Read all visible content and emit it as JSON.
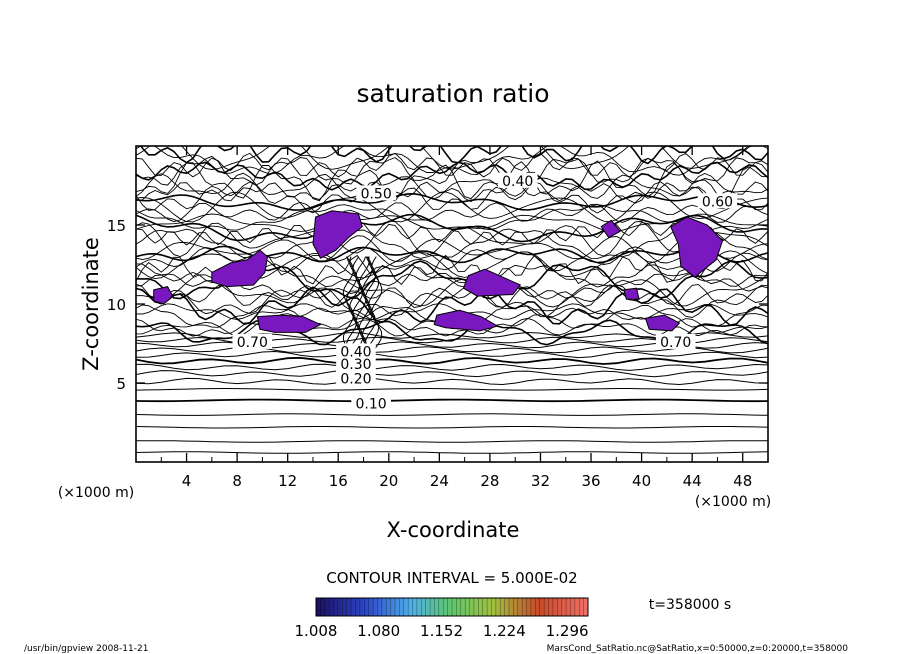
{
  "chart_data": {
    "type": "contour",
    "title": "saturation ratio",
    "xlabel": "X-coordinate",
    "ylabel": "Z-coordinate",
    "x_unit": "(×1000 m)",
    "z_unit": "(×1000 m)",
    "xlim": [
      0,
      50
    ],
    "ylim": [
      0,
      20
    ],
    "x_ticks": [
      "4",
      "8",
      "12",
      "16",
      "20",
      "24",
      "28",
      "32",
      "36",
      "40",
      "44",
      "48"
    ],
    "y_ticks": [
      "5",
      "10",
      "15"
    ],
    "contour_interval_text": "CONTOUR INTERVAL = 5.000E-02",
    "contour_labels": [
      {
        "text": "0.10",
        "x": 18.6,
        "z": 3.7
      },
      {
        "text": "0.20",
        "x": 17.4,
        "z": 5.3
      },
      {
        "text": "0.30",
        "x": 17.4,
        "z": 6.2
      },
      {
        "text": "0.40",
        "x": 17.4,
        "z": 7.0
      },
      {
        "text": "0.50",
        "x": 19.0,
        "z": 17.0
      },
      {
        "text": "0.40",
        "x": 30.2,
        "z": 17.8
      },
      {
        "text": "0.60",
        "x": 46.0,
        "z": 16.5
      },
      {
        "text": "0.70",
        "x": 9.2,
        "z": 7.6
      },
      {
        "text": "0.70",
        "x": 42.7,
        "z": 7.6
      }
    ],
    "shaded_regions_note": "saturation ratio above 1.0",
    "colorbar": {
      "tick_labels": [
        "1.008",
        "1.080",
        "1.152",
        "1.224",
        "1.296"
      ],
      "range": [
        1.008,
        1.32
      ]
    },
    "time_label": "t=358000 s"
  },
  "footer": {
    "left": "/usr/bin/gpview   2008-11-21",
    "right": "MarsCond_SatRatio.nc@SatRatio,x=0:50000,z=0:20000,t=358000"
  }
}
